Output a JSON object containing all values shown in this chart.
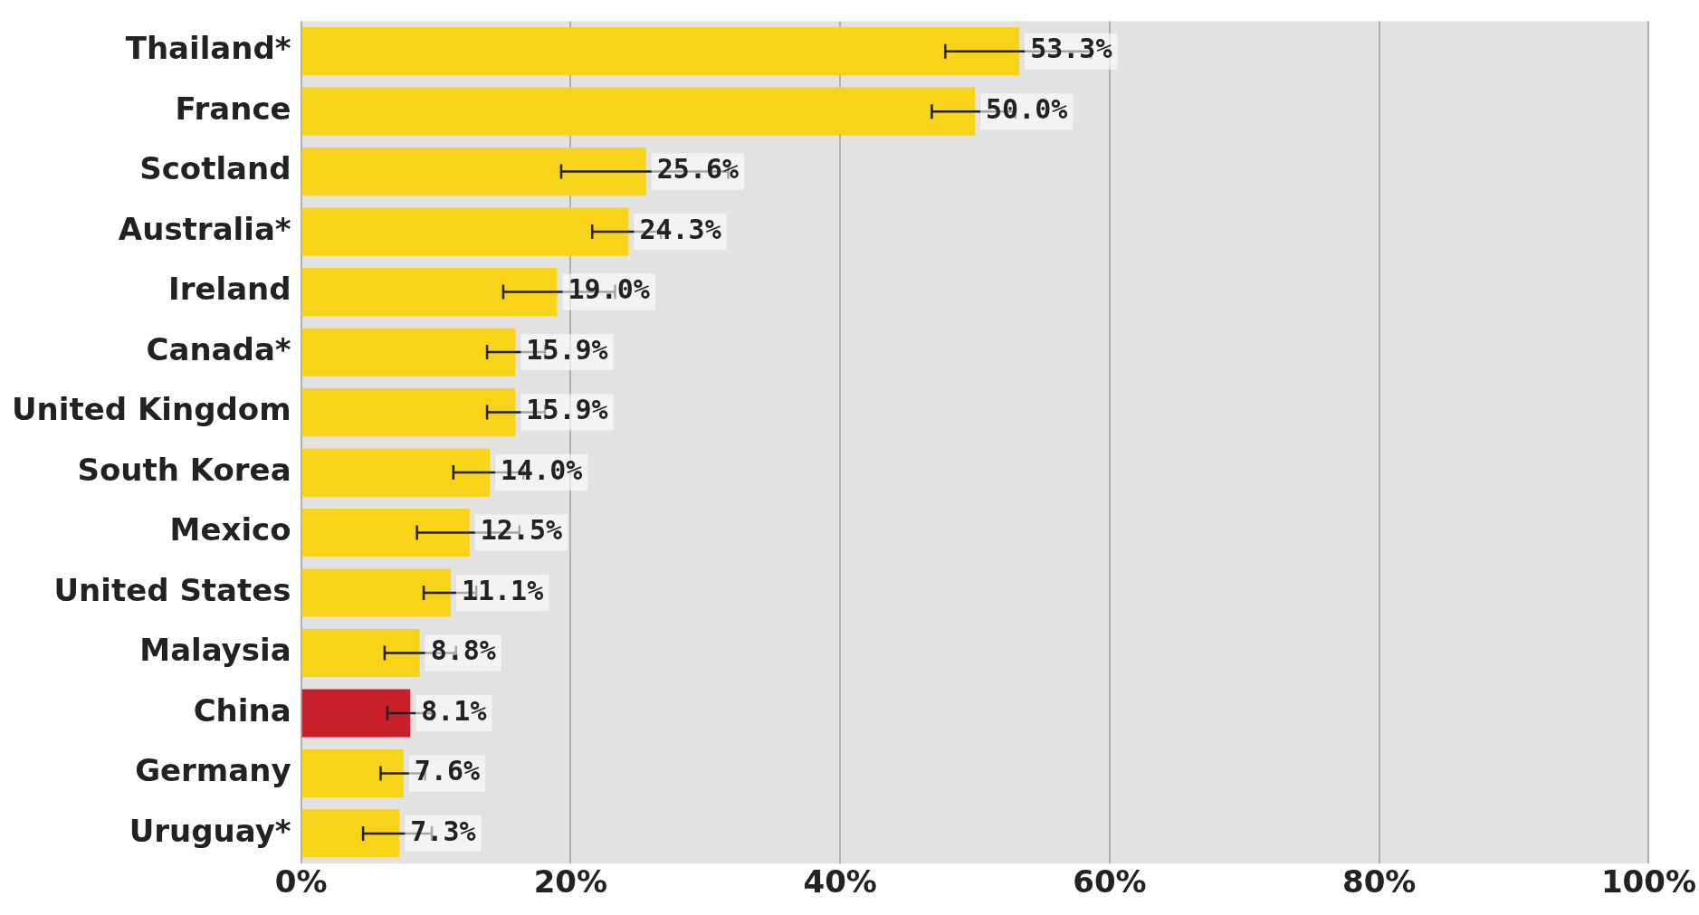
{
  "chart_data": {
    "type": "bar",
    "orientation": "horizontal",
    "categories": [
      "Thailand*",
      "France",
      "Scotland",
      "Australia*",
      "Ireland",
      "Canada*",
      "United Kingdom",
      "South Korea",
      "Mexico",
      "United States",
      "Malaysia",
      "China",
      "Germany",
      "Uruguay*"
    ],
    "values": [
      53.3,
      50.0,
      25.6,
      24.3,
      19.0,
      15.9,
      15.9,
      14.0,
      12.5,
      11.1,
      8.8,
      8.1,
      7.6,
      7.3
    ],
    "errors": [
      [
        47.8,
        58.6
      ],
      [
        46.8,
        53.0
      ],
      [
        19.3,
        31.7
      ],
      [
        21.6,
        26.7
      ],
      [
        15.0,
        23.3
      ],
      [
        13.8,
        18.1
      ],
      [
        13.8,
        18.1
      ],
      [
        11.3,
        16.5
      ],
      [
        8.6,
        16.2
      ],
      [
        9.1,
        13.0
      ],
      [
        6.2,
        11.5
      ],
      [
        6.4,
        9.7
      ],
      [
        5.9,
        9.2
      ],
      [
        4.6,
        9.7
      ]
    ],
    "value_labels": [
      "53.3%",
      "50.0%",
      "25.6%",
      "24.3%",
      "19.0%",
      "15.9%",
      "15.9%",
      "14.0%",
      "12.5%",
      "11.1%",
      "8.8%",
      "8.1%",
      "7.6%",
      "7.3%"
    ],
    "colors": [
      "#f7d31a",
      "#f7d31a",
      "#f7d31a",
      "#f7d31a",
      "#f7d31a",
      "#f7d31a",
      "#f7d31a",
      "#f7d31a",
      "#f7d31a",
      "#f7d31a",
      "#f7d31a",
      "#c8202a",
      "#f7d31a",
      "#f7d31a"
    ],
    "xlim": [
      0,
      100
    ],
    "xticks": [
      {
        "value": 0,
        "label": "0%"
      },
      {
        "value": 20,
        "label": "20%"
      },
      {
        "value": 40,
        "label": "40%"
      },
      {
        "value": 60,
        "label": "60%"
      },
      {
        "value": 80,
        "label": "80%"
      },
      {
        "value": 100,
        "label": "100%"
      }
    ],
    "grid": "x",
    "legend": false
  }
}
